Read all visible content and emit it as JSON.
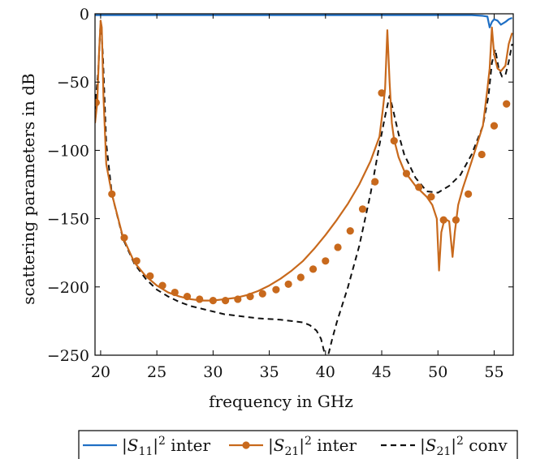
{
  "chart_data": {
    "type": "line",
    "xlabel": "frequency in GHz",
    "ylabel": "scattering parameters in dB",
    "xlim": [
      19.5,
      56.7
    ],
    "ylim": [
      -250,
      0
    ],
    "xticks": [
      20,
      25,
      30,
      35,
      40,
      45,
      50,
      55
    ],
    "yticks": [
      0,
      -50,
      -100,
      -150,
      -200,
      -250
    ],
    "xtick_labels": [
      "20",
      "25",
      "30",
      "35",
      "40",
      "45",
      "50",
      "55"
    ],
    "ytick_labels": [
      "0",
      "−50",
      "−100",
      "−150",
      "−200",
      "−250"
    ],
    "grid": false,
    "legend_position": "bottom-outside",
    "series": [
      {
        "name": "|S11|2 inter",
        "legend_parts": [
          "|S",
          "11",
          "|",
          "2",
          " inter"
        ],
        "color": "#1f6fc4",
        "style": "solid",
        "x": [
          19.5,
          19.9,
          20.05,
          25,
          30,
          35,
          40,
          45,
          50,
          53.0,
          54.0,
          54.4,
          54.6,
          54.8,
          55.0,
          55.3,
          55.6,
          56.0,
          56.3,
          56.6
        ],
        "y": [
          -1,
          -1,
          -1,
          -1,
          -1,
          -1,
          -1,
          -1,
          -1,
          -1,
          -1.5,
          -2,
          -10,
          -6,
          -4,
          -5,
          -8,
          -6,
          -4,
          -3
        ]
      },
      {
        "name": "|S21|2 inter",
        "legend_parts": [
          "|S",
          "21",
          "|",
          "2",
          " inter"
        ],
        "color": "#c8691c",
        "style": "solid",
        "x": [
          19.5,
          19.7,
          19.85,
          20.0,
          20.1,
          20.25,
          20.5,
          21.0,
          22.0,
          23.0,
          24.0,
          25.0,
          26.0,
          27.0,
          28.0,
          29.0,
          30.0,
          31.0,
          32.0,
          33.0,
          34.0,
          35.0,
          36.0,
          37.0,
          38.0,
          39.0,
          40.0,
          41.0,
          42.0,
          43.0,
          44.0,
          44.8,
          45.1,
          45.3,
          45.5,
          45.7,
          45.9,
          46.1,
          46.5,
          47.0,
          48.0,
          49.0,
          49.5,
          49.9,
          50.1,
          50.3,
          50.6,
          51.0,
          51.3,
          51.5,
          51.8,
          52.2,
          53.0,
          54.0,
          54.4,
          54.6,
          54.8,
          55.0,
          55.3,
          55.6,
          56.0,
          56.3,
          56.6
        ],
        "y": [
          -80,
          -65,
          -30,
          -5,
          -10,
          -60,
          -110,
          -132,
          -164,
          -182,
          -192,
          -199,
          -204,
          -207,
          -209,
          -210,
          -210,
          -209,
          -208,
          -206,
          -203,
          -199,
          -194,
          -188,
          -181,
          -172,
          -162,
          -151,
          -139,
          -125,
          -108,
          -90,
          -70,
          -55,
          -12,
          -50,
          -80,
          -92,
          -105,
          -115,
          -126,
          -134,
          -140,
          -150,
          -188,
          -160,
          -150,
          -152,
          -178,
          -160,
          -140,
          -128,
          -108,
          -82,
          -55,
          -40,
          -10,
          -30,
          -40,
          -42,
          -38,
          -22,
          -14
        ],
        "markers": {
          "x": [
            19.6,
            21.0,
            22.1,
            23.2,
            24.4,
            25.5,
            26.6,
            27.7,
            28.8,
            30.0,
            31.1,
            32.2,
            33.3,
            34.4,
            35.6,
            36.7,
            37.8,
            38.9,
            40.0,
            41.1,
            42.2,
            43.3,
            44.4,
            45.0,
            46.1,
            47.2,
            48.3,
            49.4,
            50.5,
            51.6,
            52.7,
            53.9,
            55.0,
            56.1
          ],
          "y": [
            -65,
            -132,
            -164,
            -181,
            -192,
            -199,
            -204,
            -207,
            -209,
            -210,
            -210,
            -209,
            -207,
            -205,
            -202,
            -198,
            -193,
            -187,
            -181,
            -171,
            -159,
            -143,
            -123,
            -58,
            -93,
            -117,
            -127,
            -134,
            -151,
            -151,
            -132,
            -103,
            -82,
            -66
          ]
        }
      },
      {
        "name": "|S21|2 conv",
        "legend_parts": [
          "|S",
          "21",
          "|",
          "2",
          " conv"
        ],
        "color": "#111111",
        "style": "dashed",
        "x": [
          19.5,
          19.8,
          20.0,
          20.2,
          20.5,
          21,
          22,
          23,
          24,
          25,
          26,
          27,
          28,
          29,
          30,
          31,
          32,
          33,
          34,
          35,
          36,
          37,
          38,
          38.6,
          39.2,
          39.6,
          39.9,
          40.1,
          40.3,
          40.6,
          41,
          42,
          43,
          44,
          44.8,
          45.3,
          45.7,
          46.0,
          46.5,
          47,
          48,
          49,
          50,
          51,
          52,
          53,
          54,
          54.5,
          54.8,
          55.1,
          55.4,
          55.7,
          56.0,
          56.3,
          56.6
        ],
        "y": [
          -70,
          -40,
          -5,
          -30,
          -95,
          -132,
          -165,
          -183,
          -194,
          -202,
          -207,
          -211,
          -214,
          -216,
          -218,
          -220,
          -221,
          -222,
          -223,
          -223.5,
          -224,
          -225,
          -226,
          -228,
          -232,
          -238,
          -248,
          -253,
          -248,
          -238,
          -226,
          -200,
          -170,
          -132,
          -96,
          -75,
          -60,
          -70,
          -88,
          -103,
          -120,
          -130,
          -131,
          -126,
          -118,
          -103,
          -82,
          -60,
          -36,
          -26,
          -40,
          -46,
          -45,
          -35,
          -22
        ]
      }
    ]
  }
}
